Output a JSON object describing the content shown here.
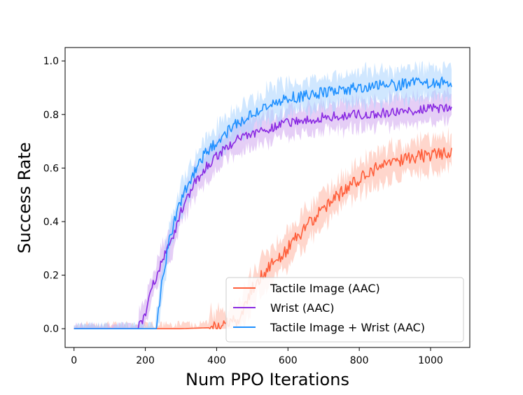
{
  "chart_data": {
    "type": "line",
    "title": "",
    "xlabel": "Num PPO Iterations",
    "ylabel": "Success Rate",
    "xlim": [
      -25,
      1110
    ],
    "ylim": [
      -0.07,
      1.05
    ],
    "xticks": [
      0,
      200,
      400,
      600,
      800,
      1000
    ],
    "xtick_labels": [
      "0",
      "200",
      "400",
      "600",
      "800",
      "1000"
    ],
    "yticks": [
      0.0,
      0.2,
      0.4,
      0.6,
      0.8,
      1.0
    ],
    "ytick_labels": [
      "0.0",
      "0.2",
      "0.4",
      "0.6",
      "0.8",
      "1.0"
    ],
    "grid": false,
    "legend_position": "lower-right",
    "x_end": 1060,
    "series": [
      {
        "name": "Tactile Image (AAC)",
        "color": "#ff5e3a",
        "band_color": "#ffb4a2",
        "x": [
          0,
          250,
          300,
          400,
          460,
          480,
          500,
          520,
          550,
          600,
          650,
          700,
          750,
          800,
          850,
          900,
          950,
          1000,
          1060
        ],
        "y": [
          0.0,
          0.0,
          0.0,
          0.005,
          0.03,
          0.09,
          0.15,
          0.19,
          0.23,
          0.3,
          0.38,
          0.45,
          0.51,
          0.56,
          0.6,
          0.62,
          0.64,
          0.65,
          0.66
        ],
        "noise": 0.025,
        "band_noise": 0.06
      },
      {
        "name": "Wrist (AAC)",
        "color": "#8a2be2",
        "band_color": "#cfa6ef",
        "x": [
          0,
          180,
          200,
          220,
          250,
          280,
          300,
          340,
          380,
          420,
          460,
          500,
          550,
          600,
          700,
          800,
          900,
          1000,
          1060
        ],
        "y": [
          0.0,
          0.0,
          0.06,
          0.16,
          0.26,
          0.35,
          0.44,
          0.55,
          0.62,
          0.67,
          0.71,
          0.73,
          0.75,
          0.77,
          0.79,
          0.8,
          0.81,
          0.82,
          0.83
        ],
        "noise": 0.018,
        "band_noise": 0.05
      },
      {
        "name": "Tactile Image + Wrist (AAC)",
        "color": "#1e90ff",
        "band_color": "#a9d3ff",
        "x": [
          0,
          230,
          250,
          270,
          300,
          330,
          360,
          400,
          450,
          500,
          550,
          600,
          700,
          800,
          900,
          1000,
          1060
        ],
        "y": [
          0.0,
          0.0,
          0.2,
          0.35,
          0.48,
          0.57,
          0.64,
          0.7,
          0.76,
          0.8,
          0.84,
          0.86,
          0.88,
          0.9,
          0.91,
          0.92,
          0.92
        ],
        "noise": 0.022,
        "band_noise": 0.055
      }
    ]
  }
}
